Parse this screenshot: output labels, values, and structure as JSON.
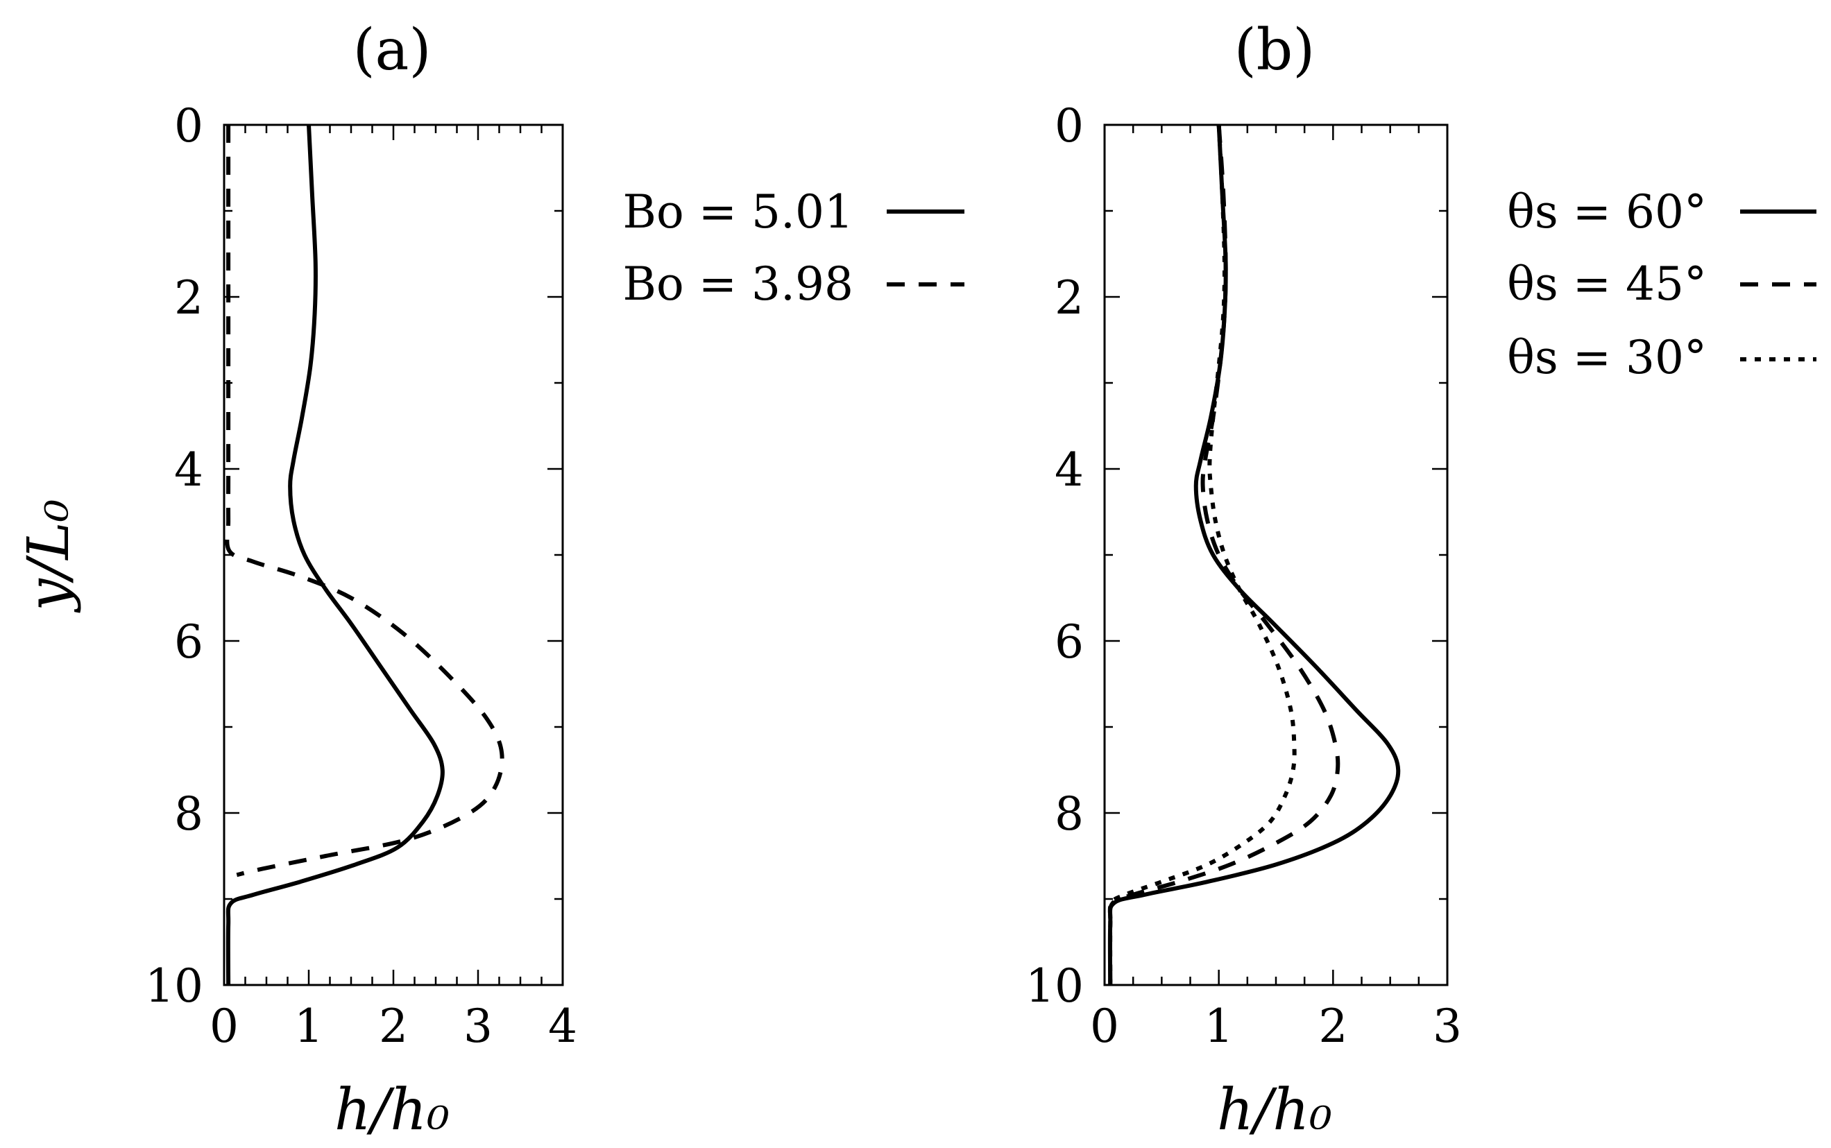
{
  "chart_data": [
    {
      "type": "line",
      "panel_label": "(a)",
      "xlabel": "h/h₀",
      "ylabel": "y/L₀",
      "xlim": [
        0,
        4
      ],
      "ylim": [
        10,
        0
      ],
      "y_inverted": true,
      "xticks": [
        "0",
        "1",
        "2",
        "3",
        "4"
      ],
      "yticks": [
        "0",
        "2",
        "4",
        "6",
        "8",
        "10"
      ],
      "legend_position": "right-top",
      "series": [
        {
          "name": "Bo = 5.01",
          "style": "solid",
          "points": [
            [
              1.0,
              0.0
            ],
            [
              1.04,
              0.8
            ],
            [
              1.08,
              1.6
            ],
            [
              1.07,
              2.2
            ],
            [
              1.02,
              2.8
            ],
            [
              0.92,
              3.4
            ],
            [
              0.82,
              3.9
            ],
            [
              0.78,
              4.2
            ],
            [
              0.82,
              4.6
            ],
            [
              0.95,
              5.0
            ],
            [
              1.2,
              5.4
            ],
            [
              1.5,
              5.8
            ],
            [
              1.85,
              6.3
            ],
            [
              2.2,
              6.8
            ],
            [
              2.48,
              7.2
            ],
            [
              2.58,
              7.5
            ],
            [
              2.52,
              7.8
            ],
            [
              2.35,
              8.1
            ],
            [
              2.05,
              8.4
            ],
            [
              1.55,
              8.6
            ],
            [
              0.9,
              8.8
            ],
            [
              0.35,
              8.95
            ],
            [
              0.08,
              9.05
            ],
            [
              0.05,
              9.3
            ],
            [
              0.05,
              10.0
            ]
          ]
        },
        {
          "name": "Bo = 3.98",
          "style": "dashed",
          "points": [
            [
              0.05,
              0.0
            ],
            [
              0.05,
              1.0
            ],
            [
              0.05,
              2.0
            ],
            [
              0.05,
              3.0
            ],
            [
              0.05,
              4.0
            ],
            [
              0.05,
              4.6
            ],
            [
              0.06,
              4.95
            ],
            [
              0.35,
              5.08
            ],
            [
              0.9,
              5.25
            ],
            [
              1.5,
              5.5
            ],
            [
              2.1,
              5.9
            ],
            [
              2.65,
              6.4
            ],
            [
              3.1,
              6.9
            ],
            [
              3.28,
              7.3
            ],
            [
              3.2,
              7.7
            ],
            [
              2.9,
              8.0
            ],
            [
              2.2,
              8.3
            ],
            [
              1.2,
              8.5
            ],
            [
              0.45,
              8.65
            ],
            [
              0.15,
              8.72
            ]
          ]
        }
      ]
    },
    {
      "type": "line",
      "panel_label": "(b)",
      "xlabel": "h/h₀",
      "ylabel": "",
      "xlim": [
        0,
        3
      ],
      "ylim": [
        10,
        0
      ],
      "y_inverted": true,
      "xticks": [
        "0",
        "1",
        "2",
        "3"
      ],
      "yticks": [
        "0",
        "2",
        "4",
        "6",
        "8",
        "10"
      ],
      "legend_position": "right-top",
      "series": [
        {
          "name": "θs = 60°",
          "style": "solid",
          "points": [
            [
              1.0,
              0.0
            ],
            [
              1.03,
              0.8
            ],
            [
              1.06,
              1.6
            ],
            [
              1.05,
              2.2
            ],
            [
              1.01,
              2.8
            ],
            [
              0.93,
              3.4
            ],
            [
              0.84,
              3.9
            ],
            [
              0.8,
              4.2
            ],
            [
              0.84,
              4.6
            ],
            [
              0.95,
              5.0
            ],
            [
              1.18,
              5.4
            ],
            [
              1.48,
              5.8
            ],
            [
              1.85,
              6.3
            ],
            [
              2.2,
              6.8
            ],
            [
              2.48,
              7.2
            ],
            [
              2.57,
              7.5
            ],
            [
              2.5,
              7.8
            ],
            [
              2.3,
              8.1
            ],
            [
              2.0,
              8.35
            ],
            [
              1.5,
              8.6
            ],
            [
              0.9,
              8.8
            ],
            [
              0.35,
              8.95
            ],
            [
              0.08,
              9.05
            ],
            [
              0.05,
              9.3
            ],
            [
              0.05,
              10.0
            ]
          ]
        },
        {
          "name": "θs = 45°",
          "style": "dashed",
          "points": [
            [
              1.0,
              0.0
            ],
            [
              1.04,
              0.8
            ],
            [
              1.06,
              1.6
            ],
            [
              1.05,
              2.2
            ],
            [
              1.01,
              2.8
            ],
            [
              0.95,
              3.4
            ],
            [
              0.88,
              3.9
            ],
            [
              0.86,
              4.2
            ],
            [
              0.9,
              4.6
            ],
            [
              1.0,
              5.0
            ],
            [
              1.18,
              5.4
            ],
            [
              1.42,
              5.8
            ],
            [
              1.7,
              6.3
            ],
            [
              1.92,
              6.8
            ],
            [
              2.02,
              7.2
            ],
            [
              2.04,
              7.5
            ],
            [
              1.98,
              7.8
            ],
            [
              1.8,
              8.1
            ],
            [
              1.5,
              8.35
            ],
            [
              1.1,
              8.6
            ],
            [
              0.65,
              8.8
            ],
            [
              0.25,
              8.95
            ],
            [
              0.07,
              9.05
            ],
            [
              0.05,
              9.3
            ],
            [
              0.05,
              10.0
            ]
          ]
        },
        {
          "name": "θs = 30°",
          "style": "dotted",
          "points": [
            [
              1.0,
              0.0
            ],
            [
              1.03,
              0.8
            ],
            [
              1.05,
              1.6
            ],
            [
              1.04,
              2.2
            ],
            [
              1.0,
              2.8
            ],
            [
              0.95,
              3.4
            ],
            [
              0.92,
              3.9
            ],
            [
              0.93,
              4.2
            ],
            [
              0.97,
              4.6
            ],
            [
              1.05,
              5.0
            ],
            [
              1.18,
              5.4
            ],
            [
              1.35,
              5.8
            ],
            [
              1.52,
              6.3
            ],
            [
              1.63,
              6.8
            ],
            [
              1.66,
              7.2
            ],
            [
              1.65,
              7.5
            ],
            [
              1.58,
              7.8
            ],
            [
              1.45,
              8.1
            ],
            [
              1.22,
              8.35
            ],
            [
              0.9,
              8.6
            ],
            [
              0.5,
              8.8
            ],
            [
              0.18,
              8.95
            ],
            [
              0.06,
              9.05
            ],
            [
              0.05,
              9.3
            ],
            [
              0.05,
              10.0
            ]
          ]
        }
      ]
    }
  ]
}
